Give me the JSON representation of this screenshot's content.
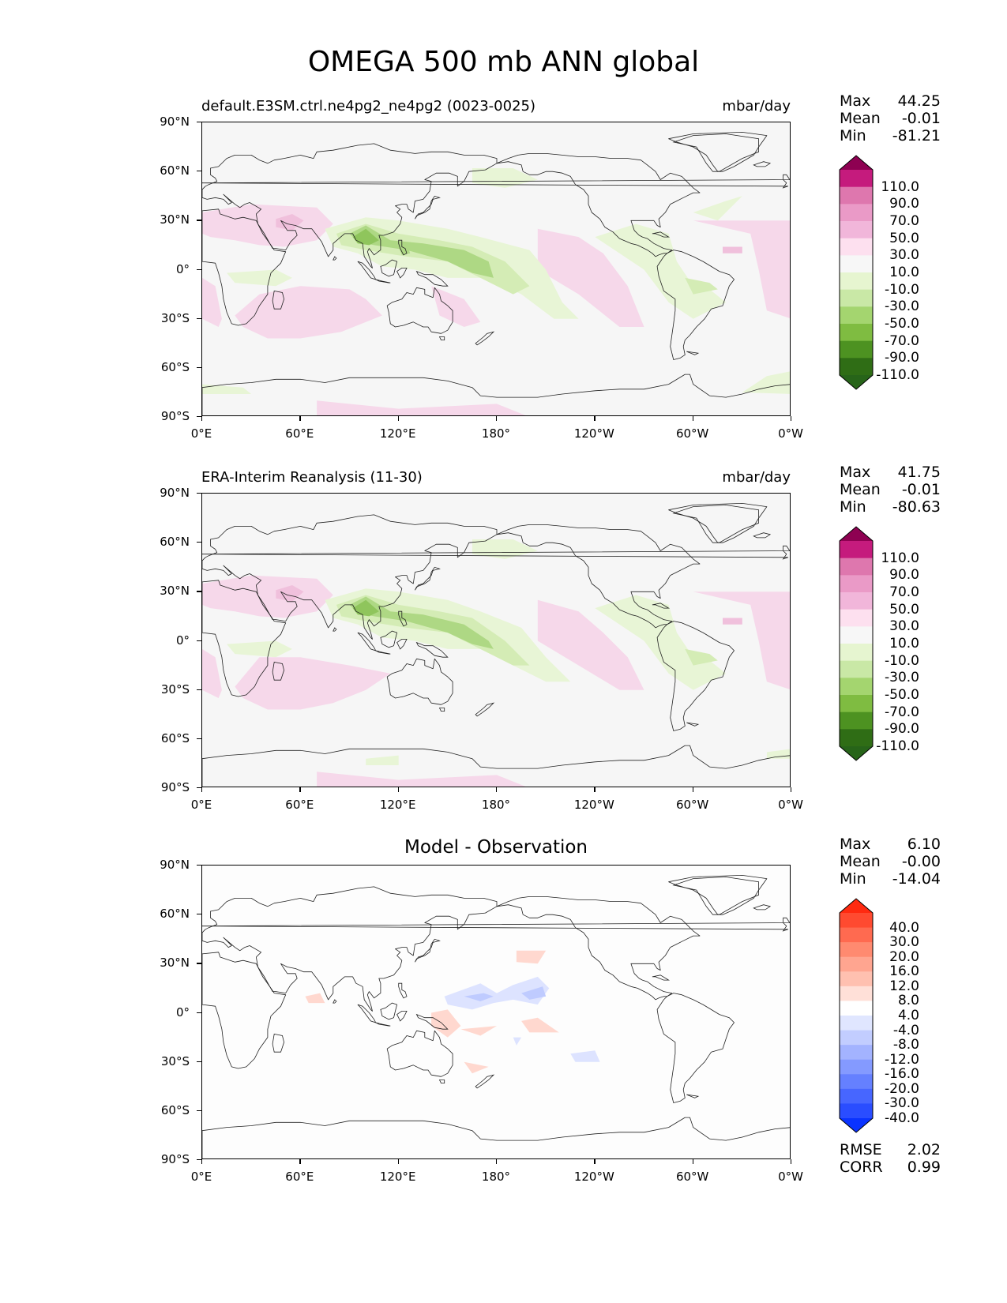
{
  "title": "OMEGA 500 mb ANN global",
  "panels": [
    {
      "id": "test",
      "left_title": "default.E3SM.ctrl.ne4pg2_ne4pg2 (0023-0025)",
      "center_title": "",
      "units": "mbar/day",
      "stats": {
        "max_label": "Max",
        "max": "44.25",
        "mean_label": "Mean",
        "mean": "-0.01",
        "min_label": "Min",
        "min": "-81.21"
      },
      "colorbar": {
        "labels": [
          "110.0",
          "90.0",
          "70.0",
          "50.0",
          "30.0",
          "10.0",
          "-10.0",
          "-30.0",
          "-50.0",
          "-70.0",
          "-90.0",
          "-110.0"
        ],
        "colors": [
          "#8e0152",
          "#c51b7d",
          "#de77ae",
          "#ea9ac7",
          "#f1b6da",
          "#fde0ef",
          "#f7f7f7",
          "#e6f5d0",
          "#c9e8a6",
          "#a4d56f",
          "#7fbc41",
          "#4d9221",
          "#2f6d15",
          "#276419"
        ]
      }
    },
    {
      "id": "reference",
      "left_title": "ERA-Interim Reanalysis (11-30)",
      "center_title": "",
      "units": "mbar/day",
      "stats": {
        "max_label": "Max",
        "max": "41.75",
        "mean_label": "Mean",
        "mean": "-0.01",
        "min_label": "Min",
        "min": "-80.63"
      },
      "colorbar": {
        "labels": [
          "110.0",
          "90.0",
          "70.0",
          "50.0",
          "30.0",
          "10.0",
          "-10.0",
          "-30.0",
          "-50.0",
          "-70.0",
          "-90.0",
          "-110.0"
        ],
        "colors": [
          "#8e0152",
          "#c51b7d",
          "#de77ae",
          "#ea9ac7",
          "#f1b6da",
          "#fde0ef",
          "#f7f7f7",
          "#e6f5d0",
          "#c9e8a6",
          "#a4d56f",
          "#7fbc41",
          "#4d9221",
          "#2f6d15",
          "#276419"
        ]
      }
    },
    {
      "id": "diff",
      "left_title": "",
      "center_title": "Model - Observation",
      "units": "",
      "stats": {
        "max_label": "Max",
        "max": "6.10",
        "mean_label": "Mean",
        "mean": "-0.00",
        "min_label": "Min",
        "min": "-14.04"
      },
      "colorbar": {
        "labels": [
          "40.0",
          "30.0",
          "20.0",
          "16.0",
          "12.0",
          "8.0",
          "4.0",
          "-4.0",
          "-8.0",
          "-12.0",
          "-16.0",
          "-20.0",
          "-30.0",
          "-40.0"
        ],
        "colors": [
          "#ff2a10",
          "#ff4a30",
          "#ff6a50",
          "#ff8a70",
          "#ffa590",
          "#ffc0b0",
          "#ffe0d8",
          "#ffffff",
          "#e0e6ff",
          "#c2cdff",
          "#a3b3ff",
          "#849aff",
          "#6580ff",
          "#4766ff",
          "#2a4dff",
          "#0a33ff"
        ]
      },
      "metrics": {
        "rmse_label": "RMSE",
        "rmse": "2.02",
        "corr_label": "CORR",
        "corr": "0.99"
      }
    }
  ],
  "axes": {
    "lat_ticks": [
      "90°N",
      "60°N",
      "30°N",
      "0°",
      "30°S",
      "60°S",
      "90°S"
    ],
    "lon_ticks": [
      "0°E",
      "60°E",
      "120°E",
      "180°",
      "120°W",
      "60°W",
      "0°W"
    ]
  }
}
